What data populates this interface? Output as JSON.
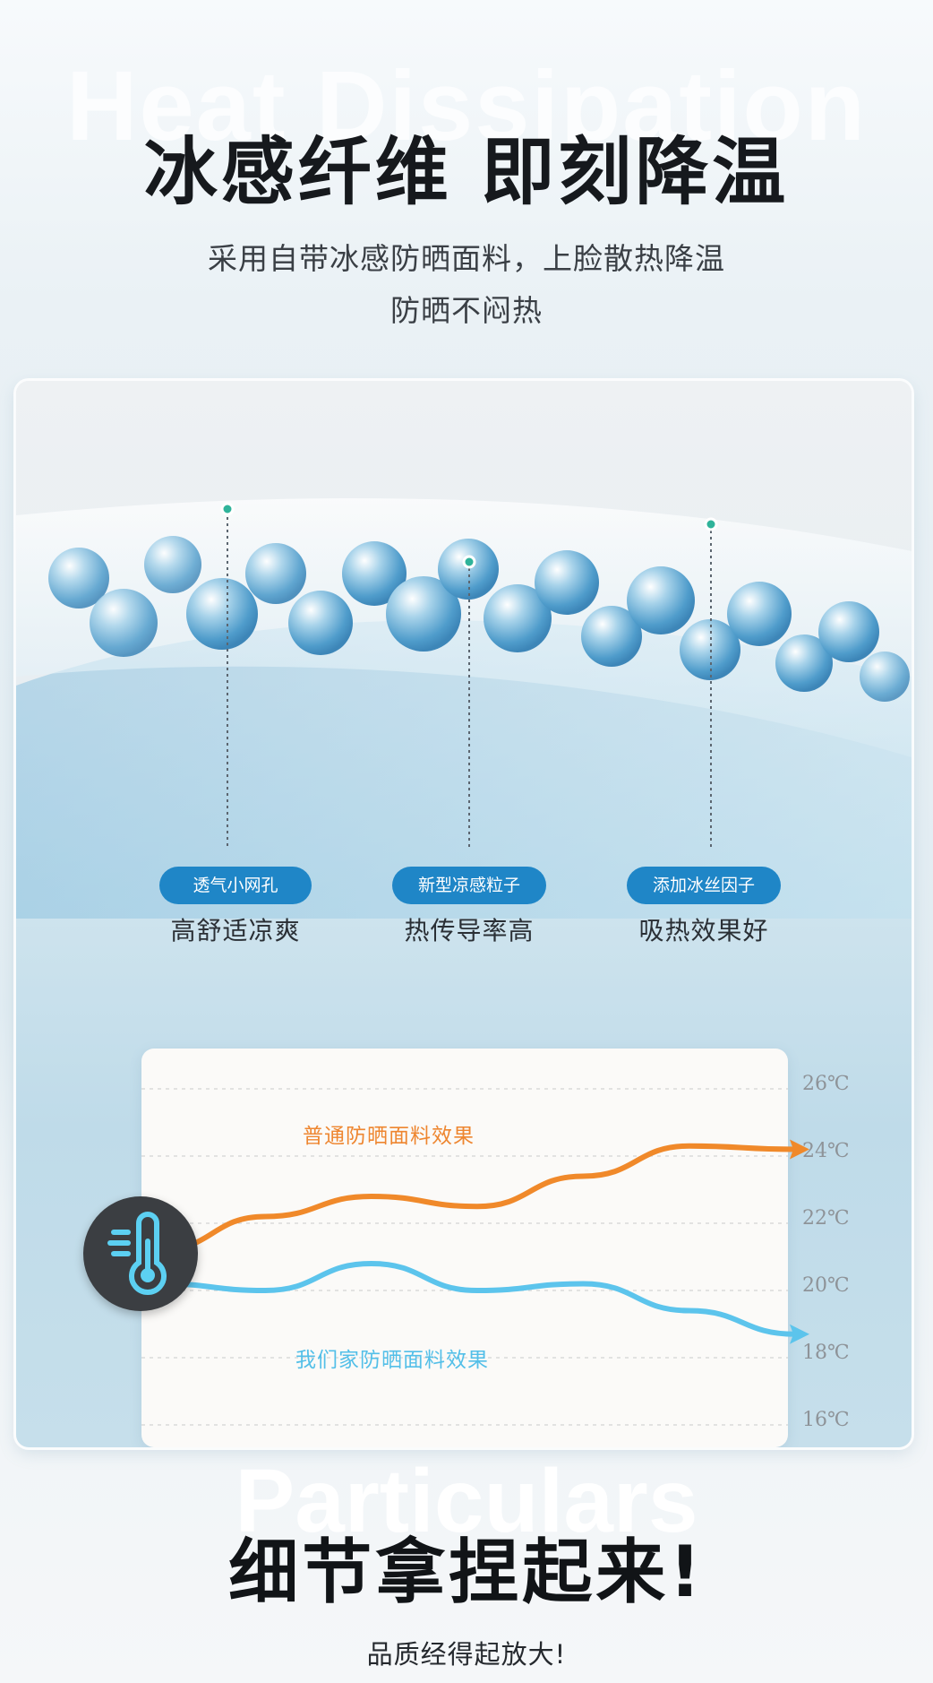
{
  "header": {
    "ghost_text": "Heat Dissipation",
    "title": "冰感纤维 即刻降温",
    "subtitle_line1": "采用自带冰感防晒面料，上脸散热降温",
    "subtitle_line2": "防晒不闷热"
  },
  "features": [
    {
      "badge": "透气小网孔",
      "desc": "高舒适凉爽"
    },
    {
      "badge": "新型凉感粒子",
      "desc": "热传导率高"
    },
    {
      "badge": "添加冰丝因子",
      "desc": "吸热效果好"
    }
  ],
  "chart_data": {
    "type": "line",
    "x": [
      0,
      1,
      2,
      3,
      4,
      5,
      6
    ],
    "series": [
      {
        "name": "普通防晒面料效果",
        "color": "#f0892a",
        "values": [
          21.2,
          22.2,
          22.8,
          22.5,
          23.4,
          24.3,
          24.2
        ]
      },
      {
        "name": "我们家防晒面料效果",
        "color": "#5cc4ec",
        "values": [
          20.2,
          20.0,
          20.8,
          20.0,
          20.2,
          19.4,
          18.7
        ]
      }
    ],
    "ytick_labels": [
      "26℃",
      "24℃",
      "22℃",
      "20℃",
      "18℃",
      "16℃"
    ],
    "yticks": [
      26,
      24,
      22,
      20,
      18,
      16
    ],
    "ylim": [
      16,
      26
    ],
    "grid": true,
    "icon": "thermometer-icon"
  },
  "footer": {
    "ghost_text": "Particulars",
    "title": "细节拿捏起来!",
    "subtitle": "品质经得起放大!"
  }
}
